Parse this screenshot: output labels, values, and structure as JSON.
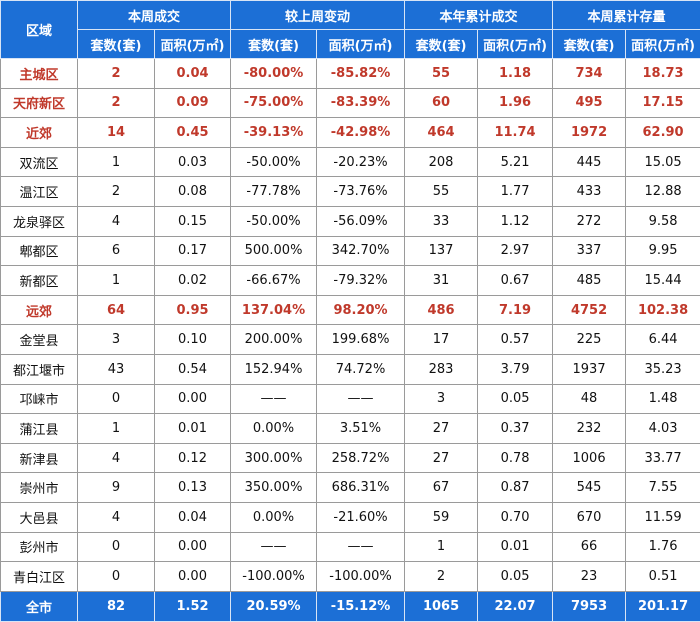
{
  "headers": {
    "region": "区域",
    "groups": [
      "本周成交",
      "较上周变动",
      "本年累计成交",
      "本周累计存量"
    ],
    "sub": [
      "套数(套)",
      "面积(万㎡)",
      "套数(套)",
      "面积(万㎡)",
      "套数(套)",
      "面积(万㎡)",
      "套数(套)",
      "面积(万㎡)"
    ]
  },
  "rows": [
    {
      "type": "region",
      "cells": [
        "主城区",
        "2",
        "0.04",
        "-80.00%",
        "-85.82%",
        "55",
        "1.18",
        "734",
        "18.73"
      ]
    },
    {
      "type": "region",
      "cells": [
        "天府新区",
        "2",
        "0.09",
        "-75.00%",
        "-83.39%",
        "60",
        "1.96",
        "495",
        "17.15"
      ]
    },
    {
      "type": "region",
      "cells": [
        "近郊",
        "14",
        "0.45",
        "-39.13%",
        "-42.98%",
        "464",
        "11.74",
        "1972",
        "62.90"
      ]
    },
    {
      "type": "district",
      "cells": [
        "双流区",
        "1",
        "0.03",
        "-50.00%",
        "-20.23%",
        "208",
        "5.21",
        "445",
        "15.05"
      ]
    },
    {
      "type": "district",
      "cells": [
        "温江区",
        "2",
        "0.08",
        "-77.78%",
        "-73.76%",
        "55",
        "1.77",
        "433",
        "12.88"
      ]
    },
    {
      "type": "district",
      "cells": [
        "龙泉驿区",
        "4",
        "0.15",
        "-50.00%",
        "-56.09%",
        "33",
        "1.12",
        "272",
        "9.58"
      ]
    },
    {
      "type": "district",
      "cells": [
        "郫都区",
        "6",
        "0.17",
        "500.00%",
        "342.70%",
        "137",
        "2.97",
        "337",
        "9.95"
      ]
    },
    {
      "type": "district",
      "cells": [
        "新都区",
        "1",
        "0.02",
        "-66.67%",
        "-79.32%",
        "31",
        "0.67",
        "485",
        "15.44"
      ]
    },
    {
      "type": "region",
      "cells": [
        "远郊",
        "64",
        "0.95",
        "137.04%",
        "98.20%",
        "486",
        "7.19",
        "4752",
        "102.38"
      ]
    },
    {
      "type": "district",
      "cells": [
        "金堂县",
        "3",
        "0.10",
        "200.00%",
        "199.68%",
        "17",
        "0.57",
        "225",
        "6.44"
      ]
    },
    {
      "type": "district",
      "cells": [
        "都江堰市",
        "43",
        "0.54",
        "152.94%",
        "74.72%",
        "283",
        "3.79",
        "1937",
        "35.23"
      ]
    },
    {
      "type": "district",
      "cells": [
        "邛崃市",
        "0",
        "0.00",
        "——",
        "——",
        "3",
        "0.05",
        "48",
        "1.48"
      ]
    },
    {
      "type": "district",
      "cells": [
        "蒲江县",
        "1",
        "0.01",
        "0.00%",
        "3.51%",
        "27",
        "0.37",
        "232",
        "4.03"
      ]
    },
    {
      "type": "district",
      "cells": [
        "新津县",
        "4",
        "0.12",
        "300.00%",
        "258.72%",
        "27",
        "0.78",
        "1006",
        "33.77"
      ]
    },
    {
      "type": "district",
      "cells": [
        "崇州市",
        "9",
        "0.13",
        "350.00%",
        "686.31%",
        "67",
        "0.87",
        "545",
        "7.55"
      ]
    },
    {
      "type": "district",
      "cells": [
        "大邑县",
        "4",
        "0.04",
        "0.00%",
        "-21.60%",
        "59",
        "0.70",
        "670",
        "11.59"
      ]
    },
    {
      "type": "district",
      "cells": [
        "彭州市",
        "0",
        "0.00",
        "——",
        "——",
        "1",
        "0.01",
        "66",
        "1.76"
      ]
    },
    {
      "type": "district",
      "cells": [
        "青白江区",
        "0",
        "0.00",
        "-100.00%",
        "-100.00%",
        "2",
        "0.05",
        "23",
        "0.51"
      ]
    }
  ],
  "total": [
    "全市",
    "82",
    "1.52",
    "20.59%",
    "-15.12%",
    "1065",
    "22.07",
    "7953",
    "201.17"
  ],
  "colors": {
    "header_bg": "#1c6fd6",
    "region_text": "#c0392b"
  }
}
